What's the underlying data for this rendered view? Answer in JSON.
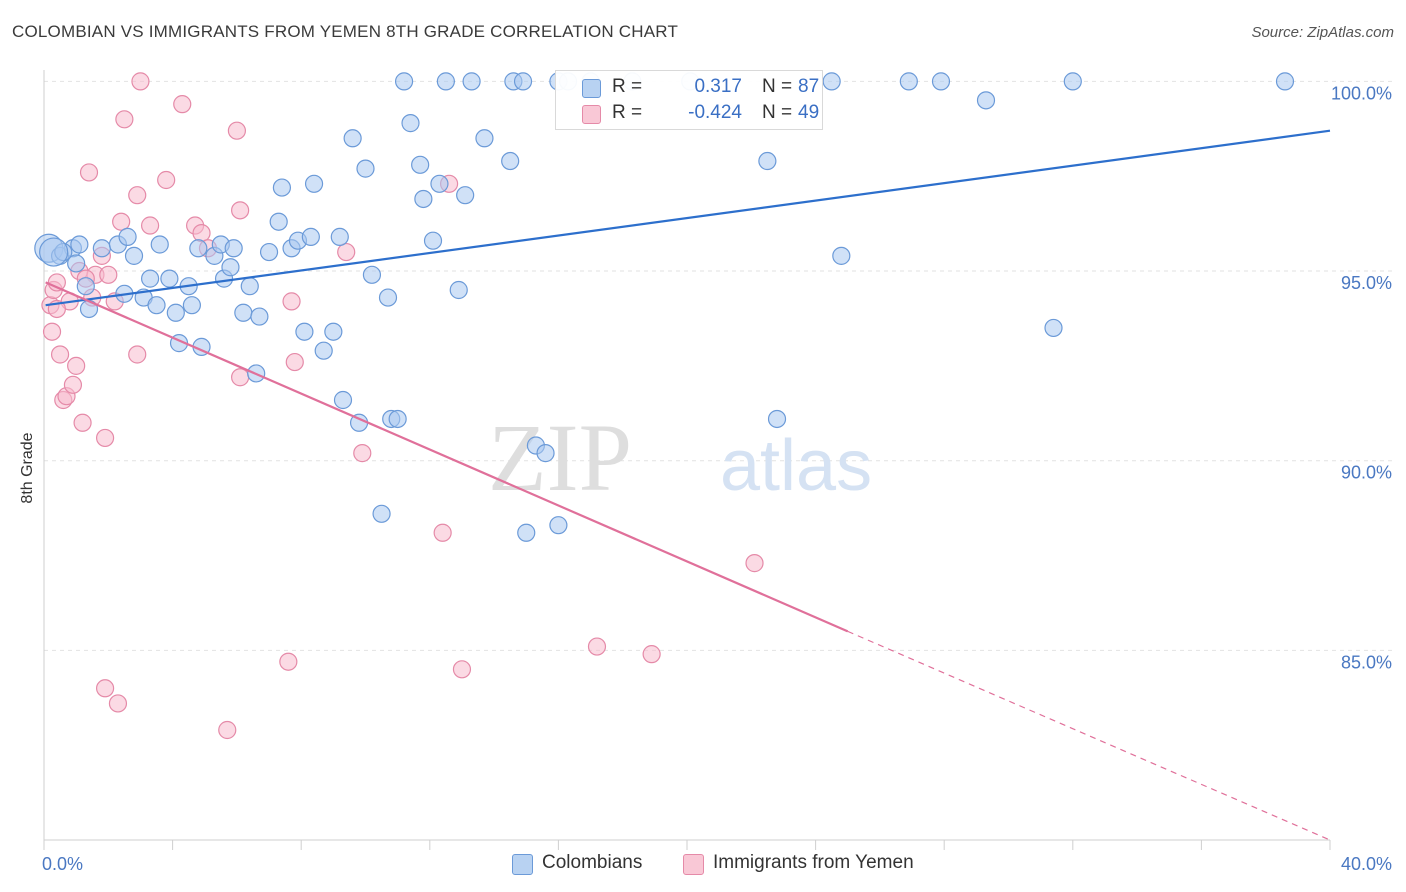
{
  "title": "COLOMBIAN VS IMMIGRANTS FROM YEMEN 8TH GRADE CORRELATION CHART",
  "source": "Source: ZipAtlas.com",
  "watermark": {
    "zip": "ZIP",
    "atlas": "atlas"
  },
  "colors": {
    "colombians_fill": "#a9c8f0",
    "colombians_stroke": "#6b9ad8",
    "colombians_line": "#2d6fcc",
    "yemen_fill": "#f7bccd",
    "yemen_stroke": "#e58aa8",
    "yemen_line": "#e0709a",
    "tick_text": "#4a78c2",
    "grid": "#e2e2e2"
  },
  "legend_top": {
    "rows": [
      {
        "r_label": "R =",
        "r_value": "0.317",
        "n_label": "N =",
        "n_value": "87"
      },
      {
        "r_label": "R =",
        "r_value": "-0.424",
        "n_label": "N =",
        "n_value": "49"
      }
    ]
  },
  "legend_bottom": {
    "colombians": "Colombians",
    "yemen": "Immigrants from Yemen"
  },
  "chart_data": {
    "type": "scatter",
    "title": "COLOMBIAN VS IMMIGRANTS FROM YEMEN 8TH GRADE CORRELATION CHART",
    "xlabel": "",
    "ylabel": "8th Grade",
    "xlim": [
      0,
      40
    ],
    "ylim": [
      80.0,
      100.3
    ],
    "x_tick_labels": [
      "0.0%",
      "40.0%"
    ],
    "y_tick_values": [
      85,
      90,
      95,
      100
    ],
    "y_tick_labels": [
      "85.0%",
      "90.0%",
      "95.0%",
      "100.0%"
    ],
    "grid": true,
    "legend_position": "bottom",
    "series": [
      {
        "name": "Colombians",
        "r": 0.317,
        "n": 87,
        "trend": {
          "x": [
            0.05,
            40.0
          ],
          "y": [
            94.1,
            98.7
          ]
        },
        "points": [
          [
            0.15,
            95.6
          ],
          [
            0.5,
            95.4
          ],
          [
            0.9,
            95.6
          ],
          [
            1.1,
            95.7
          ],
          [
            1.0,
            95.2
          ],
          [
            0.6,
            95.5
          ],
          [
            1.3,
            94.6
          ],
          [
            1.4,
            94.0
          ],
          [
            1.8,
            95.6
          ],
          [
            2.3,
            95.7
          ],
          [
            2.6,
            95.9
          ],
          [
            2.8,
            95.4
          ],
          [
            2.5,
            94.4
          ],
          [
            3.1,
            94.3
          ],
          [
            3.3,
            94.8
          ],
          [
            3.5,
            94.1
          ],
          [
            3.6,
            95.7
          ],
          [
            3.9,
            94.8
          ],
          [
            4.1,
            93.9
          ],
          [
            4.2,
            93.1
          ],
          [
            4.5,
            94.6
          ],
          [
            4.6,
            94.1
          ],
          [
            4.9,
            93.0
          ],
          [
            4.8,
            95.6
          ],
          [
            5.3,
            95.4
          ],
          [
            5.5,
            95.7
          ],
          [
            5.6,
            94.8
          ],
          [
            5.8,
            95.1
          ],
          [
            5.9,
            95.6
          ],
          [
            6.2,
            93.9
          ],
          [
            6.4,
            94.6
          ],
          [
            6.7,
            93.8
          ],
          [
            6.6,
            92.3
          ],
          [
            7.0,
            95.5
          ],
          [
            7.3,
            96.3
          ],
          [
            7.4,
            97.2
          ],
          [
            7.7,
            95.6
          ],
          [
            7.9,
            95.8
          ],
          [
            8.1,
            93.4
          ],
          [
            8.3,
            95.9
          ],
          [
            8.4,
            97.3
          ],
          [
            8.7,
            92.9
          ],
          [
            9.0,
            93.4
          ],
          [
            9.2,
            95.9
          ],
          [
            9.3,
            91.6
          ],
          [
            9.6,
            98.5
          ],
          [
            9.8,
            91.0
          ],
          [
            10.0,
            97.7
          ],
          [
            10.2,
            94.9
          ],
          [
            10.5,
            88.6
          ],
          [
            10.7,
            94.3
          ],
          [
            10.8,
            91.1
          ],
          [
            11.0,
            91.1
          ],
          [
            11.2,
            100.0
          ],
          [
            11.4,
            98.9
          ],
          [
            11.7,
            97.8
          ],
          [
            11.8,
            96.9
          ],
          [
            12.1,
            95.8
          ],
          [
            12.3,
            97.3
          ],
          [
            12.5,
            100.0
          ],
          [
            12.9,
            94.5
          ],
          [
            13.1,
            97.0
          ],
          [
            13.3,
            100.0
          ],
          [
            13.7,
            98.5
          ],
          [
            14.5,
            97.9
          ],
          [
            14.6,
            100.0
          ],
          [
            15.0,
            88.1
          ],
          [
            14.9,
            100.0
          ],
          [
            15.3,
            90.4
          ],
          [
            15.6,
            90.2
          ],
          [
            16.0,
            88.3
          ],
          [
            16.0,
            100.0
          ],
          [
            16.3,
            100.0
          ],
          [
            17.0,
            100.0
          ],
          [
            18.3,
            100.0
          ],
          [
            20.1,
            100.0
          ],
          [
            22.5,
            97.9
          ],
          [
            22.8,
            91.1
          ],
          [
            24.5,
            100.0
          ],
          [
            24.8,
            95.4
          ],
          [
            26.9,
            100.0
          ],
          [
            27.9,
            100.0
          ],
          [
            29.3,
            99.5
          ],
          [
            31.4,
            93.5
          ],
          [
            32.0,
            100.0
          ],
          [
            38.6,
            100.0
          ],
          [
            0.3,
            95.5
          ]
        ]
      },
      {
        "name": "Immigrants from Yemen",
        "r": -0.424,
        "n": 49,
        "trend": {
          "x": [
            0.05,
            25.0
          ],
          "y": [
            94.7,
            85.5
          ]
        },
        "trend_extension": {
          "x": [
            25.0,
            40.0
          ],
          "y": [
            85.5,
            80.0
          ]
        },
        "points": [
          [
            0.2,
            94.1
          ],
          [
            0.25,
            93.4
          ],
          [
            0.3,
            94.5
          ],
          [
            0.4,
            94.7
          ],
          [
            0.5,
            92.8
          ],
          [
            0.6,
            91.6
          ],
          [
            0.7,
            91.7
          ],
          [
            0.8,
            94.2
          ],
          [
            0.9,
            92.0
          ],
          [
            1.0,
            92.5
          ],
          [
            1.1,
            95.0
          ],
          [
            1.2,
            91.0
          ],
          [
            1.4,
            97.6
          ],
          [
            1.5,
            94.3
          ],
          [
            1.6,
            94.9
          ],
          [
            1.8,
            95.4
          ],
          [
            1.9,
            84.0
          ],
          [
            1.9,
            90.6
          ],
          [
            2.0,
            94.9
          ],
          [
            2.2,
            94.2
          ],
          [
            2.3,
            83.6
          ],
          [
            2.4,
            96.3
          ],
          [
            2.5,
            99.0
          ],
          [
            2.9,
            92.8
          ],
          [
            2.9,
            97.0
          ],
          [
            3.0,
            100.0
          ],
          [
            3.3,
            96.2
          ],
          [
            3.8,
            97.4
          ],
          [
            4.3,
            99.4
          ],
          [
            4.7,
            96.2
          ],
          [
            4.9,
            96.0
          ],
          [
            5.1,
            95.6
          ],
          [
            5.7,
            82.9
          ],
          [
            6.0,
            98.7
          ],
          [
            6.1,
            96.6
          ],
          [
            6.1,
            92.2
          ],
          [
            7.6,
            84.7
          ],
          [
            7.7,
            94.2
          ],
          [
            7.8,
            92.6
          ],
          [
            9.4,
            95.5
          ],
          [
            9.9,
            90.2
          ],
          [
            12.4,
            88.1
          ],
          [
            12.6,
            97.3
          ],
          [
            13.0,
            84.5
          ],
          [
            17.2,
            85.1
          ],
          [
            18.9,
            84.9
          ],
          [
            22.1,
            87.3
          ],
          [
            0.4,
            94.0
          ],
          [
            1.3,
            94.8
          ]
        ]
      }
    ]
  }
}
